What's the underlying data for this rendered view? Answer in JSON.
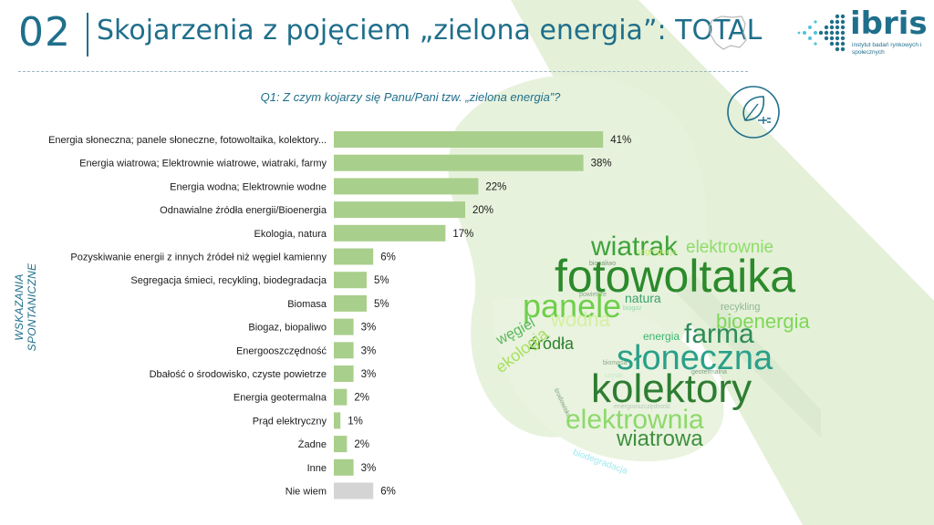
{
  "header": {
    "slide_number": "02",
    "title": "Skojarzenia z pojęciem „zielona energia”: TOTAL",
    "logo_word": "ibris",
    "logo_subtitle": "instytut badań rynkowych i społecznych"
  },
  "question": "Q1: Z czym kojarzy się Panu/Pani tzw. „zielona energia”?",
  "side_label": "WSKAZANIA SPONTANICZNE",
  "colors": {
    "accent": "#1f6f8b",
    "bar": "#a9cf8c",
    "bar_other": "#d4d4d4",
    "deco": "#e3f0d6"
  },
  "chart_data": {
    "type": "bar",
    "orientation": "horizontal",
    "categories": [
      "Energia słoneczna; panele słoneczne, fotowoltaika, kolektory...",
      "Energia wiatrowa; Elektrownie wiatrowe, wiatraki, farmy",
      "Energia wodna; Elektrownie wodne",
      "Odnawialne źródła energii/Bioenergia",
      "Ekologia, natura",
      "Pozyskiwanie energii z innych źródeł niż węgiel kamienny",
      "Segregacja śmieci, recykling, biodegradacja",
      "Biomasa",
      "Biogaz, biopaliwo",
      "Energooszczędność",
      "Dbałość o środowisko, czyste powietrze",
      "Energia geotermalna",
      "Prąd elektryczny",
      "Żadne",
      "Inne",
      "Nie wiem"
    ],
    "values": [
      41,
      38,
      22,
      20,
      17,
      6,
      5,
      5,
      3,
      3,
      3,
      2,
      1,
      2,
      3,
      6
    ],
    "value_labels": [
      "41%",
      "38%",
      "22%",
      "20%",
      "17%",
      "6%",
      "5%",
      "5%",
      "3%",
      "3%",
      "3%",
      "2%",
      "1%",
      "2%",
      "3%",
      "6%"
    ],
    "highlight_gray": [
      false,
      false,
      false,
      false,
      false,
      false,
      false,
      false,
      false,
      false,
      false,
      false,
      false,
      false,
      false,
      true
    ],
    "xlim": [
      0,
      45
    ],
    "unit": "%"
  },
  "wordcloud": [
    {
      "text": "wiatrak",
      "color": "#3ea33a",
      "size": 1
    },
    {
      "text": "elektrownie",
      "color": "#8fdc6a",
      "size": 2
    },
    {
      "text": "biopaliwo",
      "color": "#7a9a7a",
      "size": 3
    },
    {
      "text": "segregacja",
      "color": "#c6e87a",
      "size": 4
    },
    {
      "text": "fotowoltaika",
      "color": "#2c8a2c",
      "size": 5
    },
    {
      "text": "powietrze",
      "color": "#8aa88a",
      "size": 6
    },
    {
      "text": "panele",
      "color": "#6fcf4a",
      "size": 7
    },
    {
      "text": "natura",
      "color": "#3aa070",
      "size": 8
    },
    {
      "text": "recykling",
      "color": "#90b890",
      "size": 9
    },
    {
      "text": "biogaz",
      "color": "#9bd8b4",
      "size": 10
    },
    {
      "text": "wodna",
      "color": "#d4f0a0",
      "size": 11
    },
    {
      "text": "bioenergia",
      "color": "#7ed857",
      "size": 12
    },
    {
      "text": "farma",
      "color": "#2e8b57",
      "size": 13
    },
    {
      "text": "energia",
      "color": "#3cb371",
      "size": 14
    },
    {
      "text": "węgiel",
      "color": "#5cb85c",
      "size": 15
    },
    {
      "text": "źródła",
      "color": "#2f7f2f",
      "size": 16
    },
    {
      "text": "słoneczna",
      "color": "#2aa08a",
      "size": 17
    },
    {
      "text": "biomasa",
      "color": "#8aa88a",
      "size": 18
    },
    {
      "text": "ekologia",
      "color": "#a8e05f",
      "size": 19
    },
    {
      "text": "czyste",
      "color": "#c7e8c7",
      "size": 20
    },
    {
      "text": "geotermalna",
      "color": "#7fa07f",
      "size": 21
    },
    {
      "text": "środowisko",
      "color": "#7fa07f",
      "size": 22
    },
    {
      "text": "kolektory",
      "color": "#2e7d32",
      "size": 23
    },
    {
      "text": "energooszczędność",
      "color": "#b7c7b7",
      "size": 24
    },
    {
      "text": "elektrownia",
      "color": "#8ed86c",
      "size": 25
    },
    {
      "text": "wiatrowa",
      "color": "#3f8f3f",
      "size": 26
    },
    {
      "text": "biodegradacja",
      "color": "#a0e8f0",
      "size": 27
    }
  ]
}
